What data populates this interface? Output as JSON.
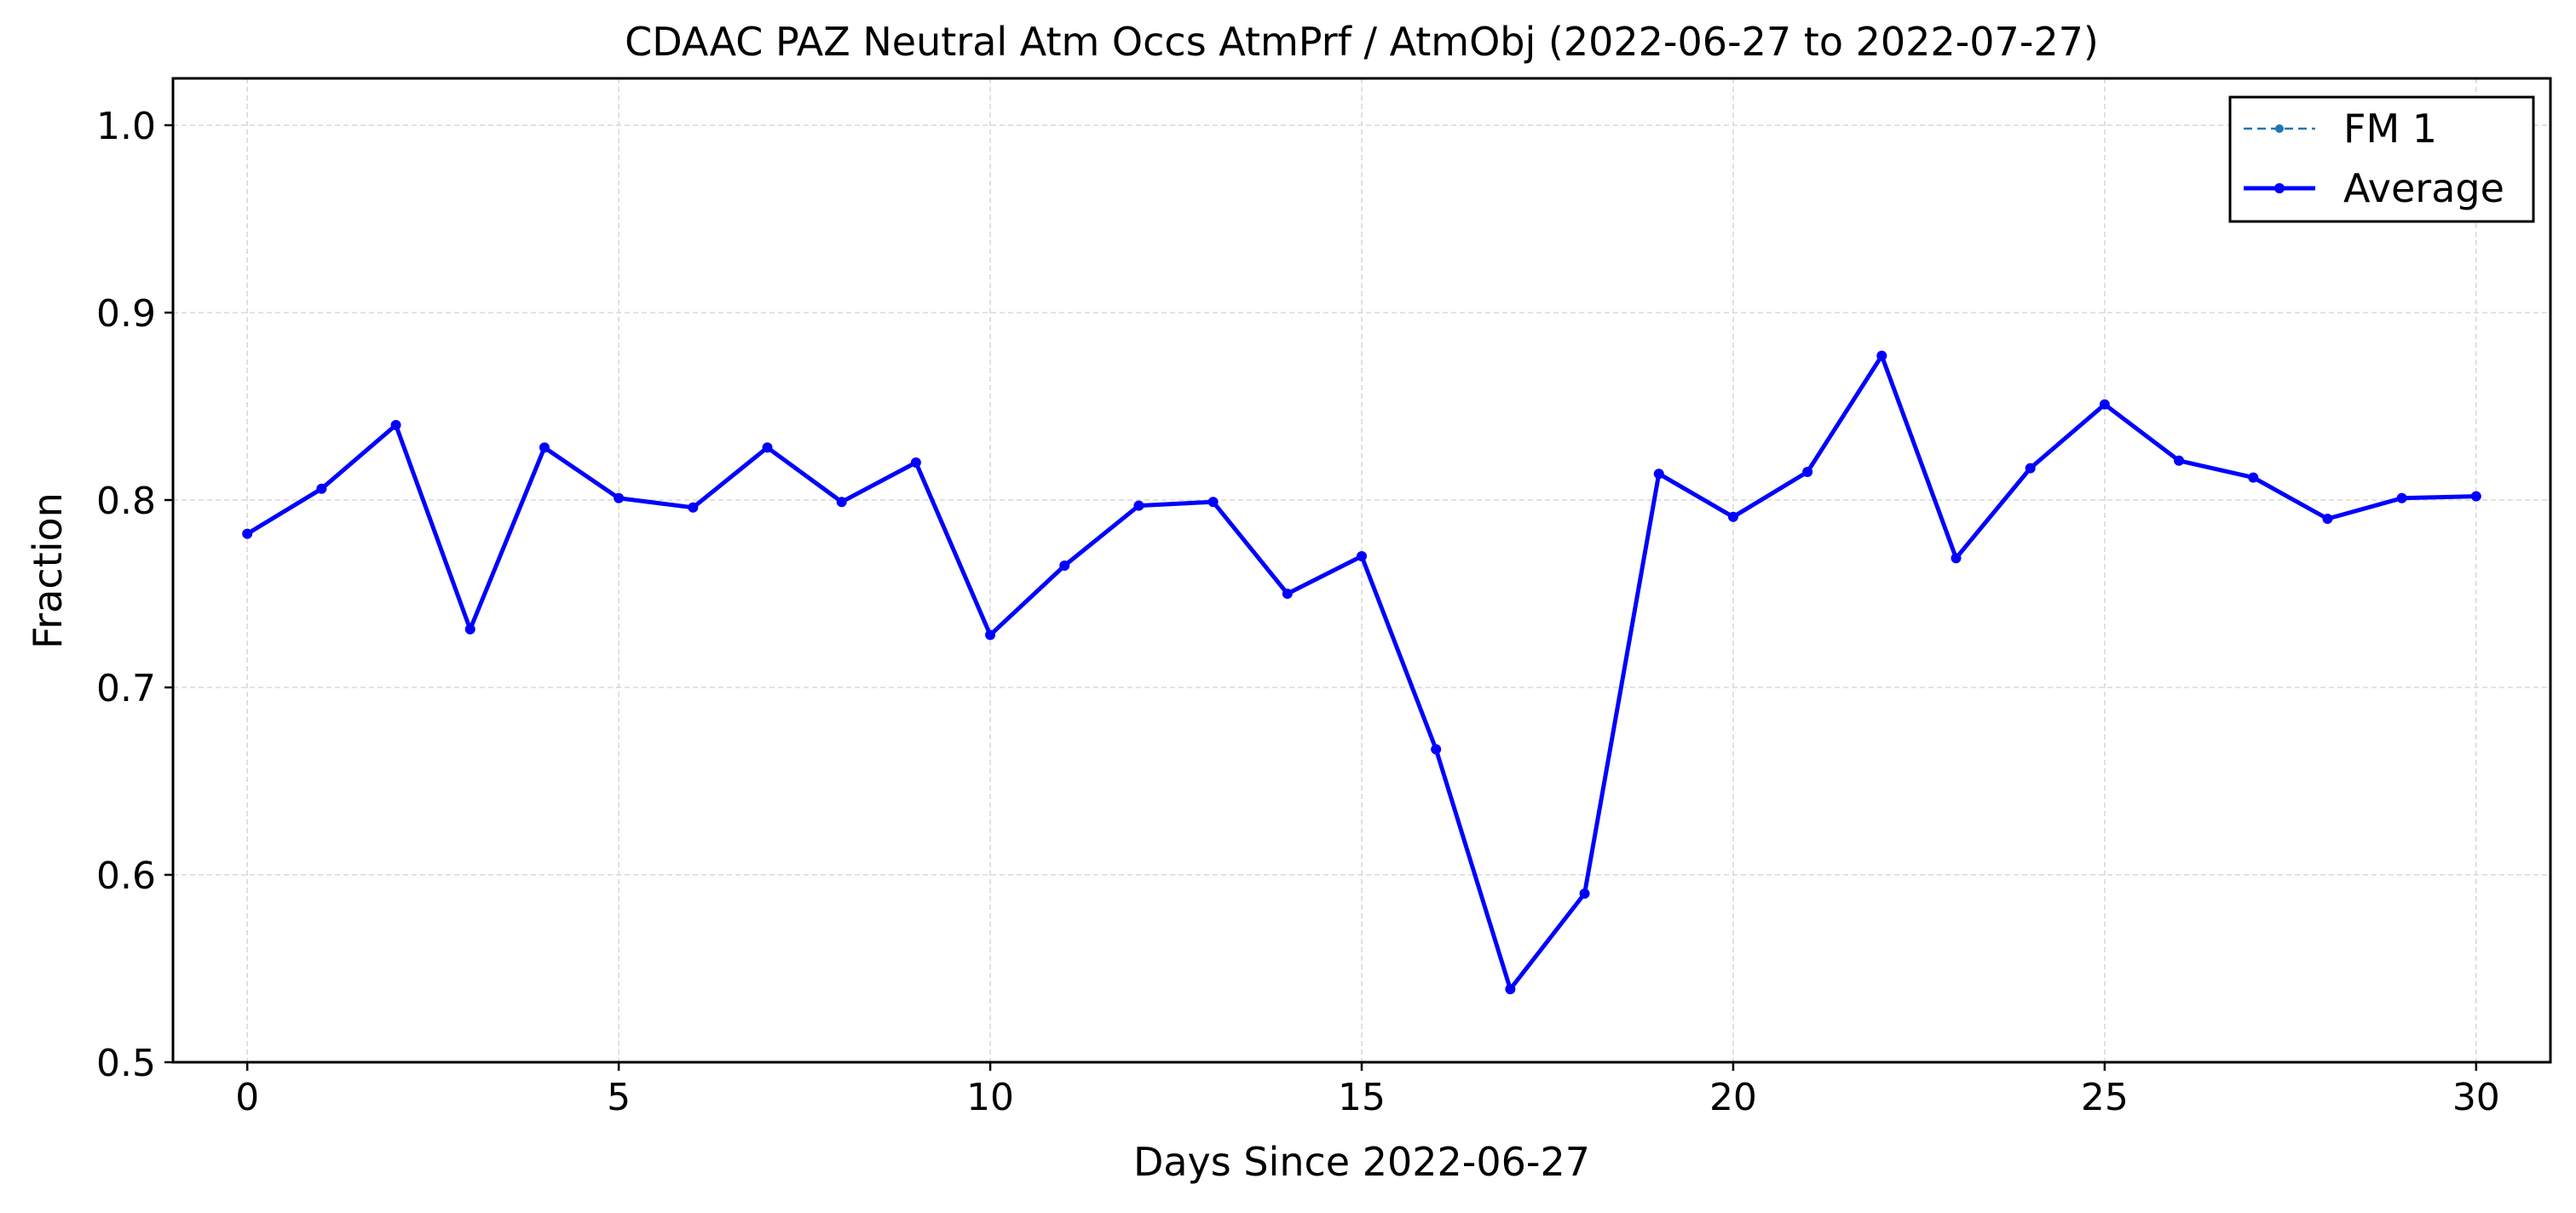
{
  "chart_data": {
    "type": "line",
    "title": "CDAAC PAZ Neutral Atm Occs AtmPrf / AtmObj (2022-06-27 to 2022-07-27)",
    "xlabel": "Days Since 2022-06-27",
    "ylabel": "Fraction",
    "xlim": [
      -1,
      31
    ],
    "ylim": [
      0.5,
      1.025
    ],
    "x_ticks": [
      0,
      5,
      10,
      15,
      20,
      25,
      30
    ],
    "x_tick_labels": [
      "0",
      "5",
      "10",
      "15",
      "20",
      "25",
      "30"
    ],
    "y_ticks": [
      0.5,
      0.6,
      0.7,
      0.8,
      0.9,
      1.0
    ],
    "y_tick_labels": [
      "0.5",
      "0.6",
      "0.7",
      "0.8",
      "0.9",
      "1.0"
    ],
    "grid": true,
    "legend_position": "top-right",
    "x": [
      0,
      1,
      2,
      3,
      4,
      5,
      6,
      7,
      8,
      9,
      10,
      11,
      12,
      13,
      14,
      15,
      16,
      17,
      18,
      19,
      20,
      21,
      22,
      23,
      24,
      25,
      26,
      27,
      28,
      29,
      30
    ],
    "series": [
      {
        "name": "FM 1",
        "style": "dashed",
        "color": "#1f77b4",
        "values": [
          0.782,
          0.806,
          0.84,
          0.731,
          0.828,
          0.801,
          0.796,
          0.828,
          0.799,
          0.82,
          0.728,
          0.765,
          0.797,
          0.799,
          0.75,
          0.77,
          0.667,
          0.539,
          0.59,
          0.814,
          0.791,
          0.815,
          0.877,
          0.769,
          0.817,
          0.851,
          0.821,
          0.812,
          0.79,
          0.801,
          0.802
        ]
      },
      {
        "name": "Average",
        "style": "solid",
        "color": "#0000ff",
        "values": [
          0.782,
          0.806,
          0.84,
          0.731,
          0.828,
          0.801,
          0.796,
          0.828,
          0.799,
          0.82,
          0.728,
          0.765,
          0.797,
          0.799,
          0.75,
          0.77,
          0.667,
          0.539,
          0.59,
          0.814,
          0.791,
          0.815,
          0.877,
          0.769,
          0.817,
          0.851,
          0.821,
          0.812,
          0.79,
          0.801,
          0.802
        ]
      }
    ]
  }
}
